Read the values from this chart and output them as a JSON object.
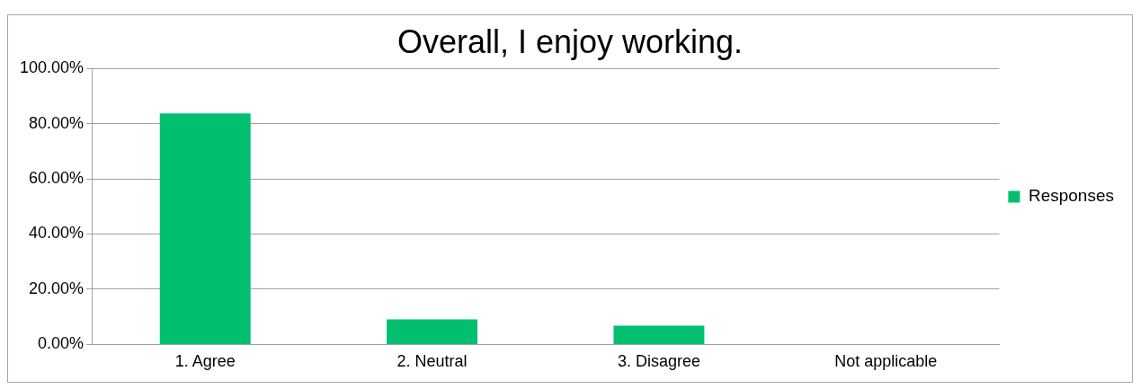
{
  "chart_data": {
    "type": "bar",
    "title": "Overall, I enjoy working.",
    "categories": [
      "1. Agree",
      "2. Neutral",
      "3. Disagree",
      "Not applicable"
    ],
    "series": [
      {
        "name": "Responses",
        "color": "#00bf6f",
        "values": [
          83.7,
          9.1,
          6.8,
          0
        ]
      }
    ],
    "ylim": [
      0,
      100
    ],
    "yticks": [
      {
        "value": 0,
        "label": "0.00%"
      },
      {
        "value": 20,
        "label": "20.00%"
      },
      {
        "value": 40,
        "label": "40.00%"
      },
      {
        "value": 60,
        "label": "60.00%"
      },
      {
        "value": 80,
        "label": "80.00%"
      },
      {
        "value": 100,
        "label": "100.00%"
      }
    ],
    "grid": "y",
    "legend": "right"
  }
}
